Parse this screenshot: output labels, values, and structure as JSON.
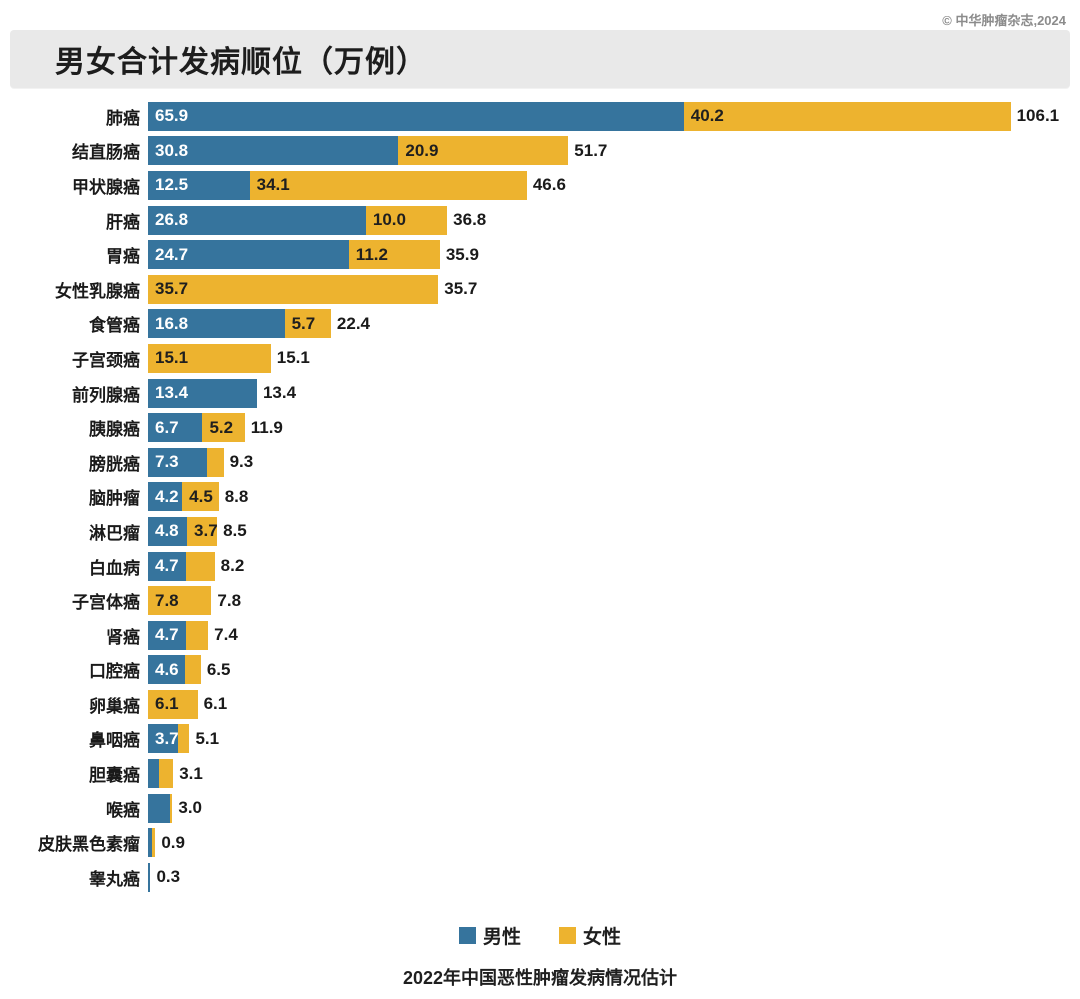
{
  "copyright": "© 中华肿瘤杂志,2024",
  "title": "男女合计发病顺位（万例）",
  "legend": {
    "male": "男性",
    "female": "女性"
  },
  "caption": "2022年中国恶性肿瘤发病情况估计",
  "colors": {
    "male": "#36749d",
    "female": "#edb32f",
    "title_bar_bg": "#e9e9e9",
    "text": "#1a1a1a"
  },
  "chart_data": {
    "type": "bar",
    "orientation": "horizontal",
    "stacked": true,
    "title": "男女合计发病顺位（万例）",
    "unit": "万例",
    "xlim": [
      0,
      106.1
    ],
    "grid": false,
    "legend_position": "bottom",
    "series_names": [
      "男性",
      "女性"
    ],
    "rows": [
      {
        "name": "肺癌",
        "male": 65.9,
        "female": 40.2,
        "total": 106.1,
        "male_label": "65.9",
        "female_label": "40.2",
        "total_label": "106.1"
      },
      {
        "name": "结直肠癌",
        "male": 30.8,
        "female": 20.9,
        "total": 51.7,
        "male_label": "30.8",
        "female_label": "20.9",
        "total_label": "51.7"
      },
      {
        "name": "甲状腺癌",
        "male": 12.5,
        "female": 34.1,
        "total": 46.6,
        "male_label": "12.5",
        "female_label": "34.1",
        "total_label": "46.6"
      },
      {
        "name": "肝癌",
        "male": 26.8,
        "female": 10.0,
        "total": 36.8,
        "male_label": "26.8",
        "female_label": "10.0",
        "total_label": "36.8"
      },
      {
        "name": "胃癌",
        "male": 24.7,
        "female": 11.2,
        "total": 35.9,
        "male_label": "24.7",
        "female_label": "11.2",
        "total_label": "35.9"
      },
      {
        "name": "女性乳腺癌",
        "male": 0,
        "female": 35.7,
        "total": 35.7,
        "male_label": "",
        "female_label": "35.7",
        "total_label": "35.7"
      },
      {
        "name": "食管癌",
        "male": 16.8,
        "female": 5.7,
        "total": 22.4,
        "male_label": "16.8",
        "female_label": "5.7",
        "total_label": "22.4"
      },
      {
        "name": "子宫颈癌",
        "male": 0,
        "female": 15.1,
        "total": 15.1,
        "male_label": "",
        "female_label": "15.1",
        "total_label": "15.1"
      },
      {
        "name": "前列腺癌",
        "male": 13.4,
        "female": 0,
        "total": 13.4,
        "male_label": "13.4",
        "female_label": "",
        "total_label": "13.4"
      },
      {
        "name": "胰腺癌",
        "male": 6.7,
        "female": 5.2,
        "total": 11.9,
        "male_label": "6.7",
        "female_label": "5.2",
        "total_label": "11.9"
      },
      {
        "name": "膀胱癌",
        "male": 7.3,
        "female": 2.0,
        "total": 9.3,
        "male_label": "7.3",
        "female_label": "",
        "total_label": "9.3"
      },
      {
        "name": "脑肿瘤",
        "male": 4.2,
        "female": 4.5,
        "total": 8.8,
        "male_label": "4.2",
        "female_label": "4.5",
        "total_label": "8.8"
      },
      {
        "name": "淋巴瘤",
        "male": 4.8,
        "female": 3.7,
        "total": 8.5,
        "male_label": "4.8",
        "female_label": "3.7",
        "total_label": "8.5"
      },
      {
        "name": "白血病",
        "male": 4.7,
        "female": 3.5,
        "total": 8.2,
        "male_label": "4.7",
        "female_label": "",
        "total_label": "8.2"
      },
      {
        "name": "子宫体癌",
        "male": 0,
        "female": 7.8,
        "total": 7.8,
        "male_label": "",
        "female_label": "7.8",
        "total_label": "7.8"
      },
      {
        "name": "肾癌",
        "male": 4.7,
        "female": 2.7,
        "total": 7.4,
        "male_label": "4.7",
        "female_label": "",
        "total_label": "7.4"
      },
      {
        "name": "口腔癌",
        "male": 4.6,
        "female": 1.9,
        "total": 6.5,
        "male_label": "4.6",
        "female_label": "",
        "total_label": "6.5"
      },
      {
        "name": "卵巢癌",
        "male": 0,
        "female": 6.1,
        "total": 6.1,
        "male_label": "",
        "female_label": "6.1",
        "total_label": "6.1"
      },
      {
        "name": "鼻咽癌",
        "male": 3.7,
        "female": 1.4,
        "total": 5.1,
        "male_label": "3.7",
        "female_label": "",
        "total_label": "5.1"
      },
      {
        "name": "胆囊癌",
        "male": 1.4,
        "female": 1.7,
        "total": 3.1,
        "male_label": "",
        "female_label": "",
        "total_label": "3.1"
      },
      {
        "name": "喉癌",
        "male": 2.7,
        "female": 0.3,
        "total": 3.0,
        "male_label": "",
        "female_label": "",
        "total_label": "3.0"
      },
      {
        "name": "皮肤黑色素瘤",
        "male": 0.5,
        "female": 0.4,
        "total": 0.9,
        "male_label": "",
        "female_label": "",
        "total_label": "0.9"
      },
      {
        "name": "睾丸癌",
        "male": 0.3,
        "female": 0,
        "total": 0.3,
        "male_label": "",
        "female_label": "",
        "total_label": "0.3"
      }
    ]
  }
}
